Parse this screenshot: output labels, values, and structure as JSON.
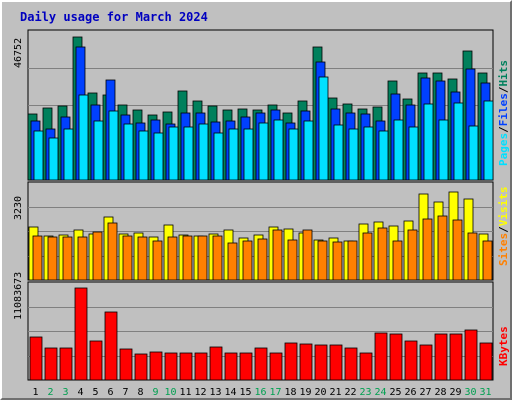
{
  "chart_data": {
    "type": "bar",
    "title": "Daily usage for March 2024",
    "categories": [
      "1",
      "2",
      "3",
      "4",
      "5",
      "6",
      "7",
      "8",
      "9",
      "10",
      "11",
      "12",
      "13",
      "14",
      "15",
      "16",
      "17",
      "18",
      "19",
      "20",
      "21",
      "22",
      "23",
      "24",
      "25",
      "26",
      "27",
      "28",
      "29",
      "30",
      "31"
    ],
    "weekend_days": [
      "2",
      "3",
      "9",
      "10",
      "16",
      "17",
      "23",
      "24",
      "30",
      "31"
    ],
    "panels": [
      {
        "name": "hits-files-pages",
        "ymax": 46752,
        "ymax_label": "46752",
        "legend": [
          "Pages",
          "Files",
          "Hits"
        ],
        "series": [
          {
            "name": "Hits",
            "color": "#00805c",
            "values": [
              21500,
              23500,
              24000,
              46500,
              28300,
              27700,
              24200,
              22700,
              21200,
              22200,
              28800,
              25800,
              23900,
              22700,
              23100,
              22700,
              24200,
              21900,
              25500,
              43300,
              26500,
              24800,
              23200,
              23800,
              32300,
              26300,
              34600,
              34600,
              32900,
              42000,
              34700
            ]
          },
          {
            "name": "Files",
            "color": "#0040ff",
            "values": [
              19100,
              16600,
              20500,
              43300,
              24500,
              32500,
              21100,
              18400,
              19500,
              18200,
              21900,
              21600,
              18700,
              19000,
              20400,
              21700,
              22700,
              18400,
              22400,
              38200,
              23000,
              21800,
              21300,
              19300,
              27900,
              24300,
              33000,
              32200,
              28700,
              35900,
              31600
            ]
          },
          {
            "name": "Pages",
            "color": "#00e0ff",
            "values": [
              16000,
              13500,
              16400,
              27500,
              19000,
              22400,
              18100,
              16000,
              15200,
              17100,
              17200,
              18100,
              15400,
              16600,
              16600,
              18400,
              19600,
              16600,
              19000,
              33500,
              17700,
              16600,
              17300,
              16000,
              19600,
              17200,
              24800,
              19500,
              25000,
              17500,
              25500
            ]
          }
        ]
      },
      {
        "name": "visits-sites",
        "ymax": 3230,
        "ymax_label": "3230",
        "legend": [
          "Sites",
          "Visits"
        ],
        "series": [
          {
            "name": "Visits",
            "color": "#ffff00",
            "values": [
              1850,
              1550,
              1580,
              1750,
              1620,
              2200,
              1600,
              1650,
              1520,
              1940,
              1580,
              1550,
              1600,
              1740,
              1490,
              1570,
              1860,
              1800,
              1640,
              1410,
              1490,
              1380,
              1960,
              2020,
              1910,
              2060,
              3020,
              2740,
              3080,
              2840,
              1610
            ]
          },
          {
            "name": "Sites",
            "color": "#ff8000",
            "values": [
              1550,
              1520,
              1500,
              1520,
              1700,
              2000,
              1550,
              1500,
              1360,
              1500,
              1530,
              1550,
              1560,
              1300,
              1360,
              1430,
              1740,
              1400,
              1750,
              1360,
              1340,
              1370,
              1640,
              1830,
              1370,
              1750,
              2130,
              2260,
              2100,
              1650,
              1360
            ]
          }
        ]
      },
      {
        "name": "kbytes",
        "ymax": 11083673,
        "ymax_label": "11083673",
        "legend": [
          "KBytes"
        ],
        "series": [
          {
            "name": "KBytes",
            "color": "#ff0000",
            "values": [
              5200000,
              3800000,
              3800000,
              11083673,
              4700000,
              8200000,
              3700000,
              3100000,
              3400000,
              3300000,
              3200000,
              3300000,
              4000000,
              3200000,
              3200000,
              3900000,
              3300000,
              4500000,
              4300000,
              4200000,
              4200000,
              3900000,
              3200000,
              5700000,
              5500000,
              4700000,
              4200000,
              5600000,
              5500000,
              6000000,
              4500000
            ]
          }
        ]
      }
    ]
  },
  "colors": {
    "title": "#0000c0",
    "plot_bg": "#c0c0c0",
    "grid": "#808080",
    "weekday_label": "#000000",
    "weekend_label": "#00a050",
    "separator": "#000000"
  }
}
